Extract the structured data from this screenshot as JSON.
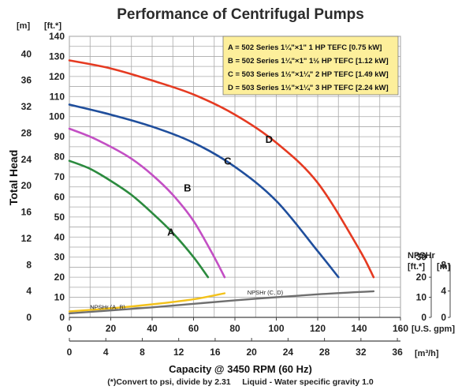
{
  "chart_data": {
    "type": "line",
    "title": "Performance of Centrifugal Pumps",
    "ylabel": "Total Head",
    "xlabel": "Capacity @ 3450 RPM (60 Hz)",
    "footnote": "(*)Convert to psi, divide by 2.31     Liquid - Water specific gravity 1.0",
    "x_unit_gpm": "[U.S. gpm]",
    "x_unit_m3h": "[m³/h]",
    "y_unit_ft": "[ft.*]",
    "y_unit_m": "[m]",
    "npshr_title": "NPSHr",
    "npshr_unit_ft": "[ft.*]",
    "npshr_unit_m": "[m]",
    "xlim_gpm": [
      0,
      160
    ],
    "ylim_ft": [
      0,
      140
    ],
    "grid": true,
    "x_ticks_gpm": [
      "0",
      "20",
      "40",
      "60",
      "80",
      "100",
      "120",
      "140",
      "160"
    ],
    "x_ticks_m3h": [
      "0",
      "4",
      "8",
      "12",
      "16",
      "20",
      "24",
      "28",
      "32",
      "36"
    ],
    "y_ticks_ft": [
      "0",
      "10",
      "20",
      "30",
      "40",
      "50",
      "60",
      "70",
      "80",
      "90",
      "100",
      "110",
      "120",
      "130",
      "140"
    ],
    "y_ticks_m": [
      "0",
      "4",
      "8",
      "12",
      "16",
      "20",
      "24",
      "28",
      "32",
      "36",
      "40"
    ],
    "npshr_ticks_ft": [
      "0",
      "10",
      "20",
      "30"
    ],
    "npshr_ticks_m": [
      "0",
      "4",
      "8"
    ],
    "legend": [
      "A = 502 Series 1¼\"×1\" 1 HP TEFC [0.75 kW]",
      "B = 502 Series 1¼\"×1\" 1½ HP TEFC [1.12 kW]",
      "C = 503 Series 1½\"×1¼\" 2 HP TEFC [1.49 kW]",
      "D = 503 Series 1½\"×1¼\" 3 HP TEFC [2.24 kW]"
    ],
    "legend_position": "top-right",
    "legend_bg": "#fdef9b",
    "series": [
      {
        "name": "A",
        "color": "#2b8a3e",
        "points": [
          [
            0,
            78
          ],
          [
            10,
            74
          ],
          [
            20,
            68
          ],
          [
            30,
            61
          ],
          [
            40,
            52
          ],
          [
            50,
            42
          ],
          [
            60,
            30
          ],
          [
            67,
            20
          ]
        ]
      },
      {
        "name": "B",
        "color": "#c34fc4",
        "points": [
          [
            0,
            94
          ],
          [
            10,
            90
          ],
          [
            20,
            85
          ],
          [
            30,
            79
          ],
          [
            40,
            71
          ],
          [
            50,
            61
          ],
          [
            60,
            48
          ],
          [
            70,
            30
          ],
          [
            75,
            20
          ]
        ]
      },
      {
        "name": "C",
        "color": "#1f4e9c",
        "points": [
          [
            0,
            106
          ],
          [
            20,
            101
          ],
          [
            40,
            95
          ],
          [
            60,
            87
          ],
          [
            80,
            75
          ],
          [
            100,
            58
          ],
          [
            120,
            33
          ],
          [
            130,
            20
          ]
        ]
      },
      {
        "name": "D",
        "color": "#e53a21",
        "points": [
          [
            0,
            128
          ],
          [
            20,
            124
          ],
          [
            40,
            118
          ],
          [
            60,
            111
          ],
          [
            80,
            101
          ],
          [
            100,
            87
          ],
          [
            120,
            67
          ],
          [
            140,
            34
          ],
          [
            147,
            20
          ]
        ]
      }
    ],
    "npshr": [
      {
        "name": "NPSHr (A, B)",
        "color": "#f3c21b",
        "points": [
          [
            0,
            3
          ],
          [
            20,
            4.5
          ],
          [
            40,
            6.5
          ],
          [
            60,
            9
          ],
          [
            75,
            12
          ]
        ]
      },
      {
        "name": "NPSHr (C, D)",
        "color": "#6f6f6f",
        "points": [
          [
            0,
            2
          ],
          [
            40,
            5
          ],
          [
            80,
            8.5
          ],
          [
            120,
            11.5
          ],
          [
            147,
            13
          ]
        ]
      }
    ],
    "npshr_label_positions": [
      [
        10,
        4.2
      ],
      [
        86,
        11.5
      ]
    ]
  }
}
